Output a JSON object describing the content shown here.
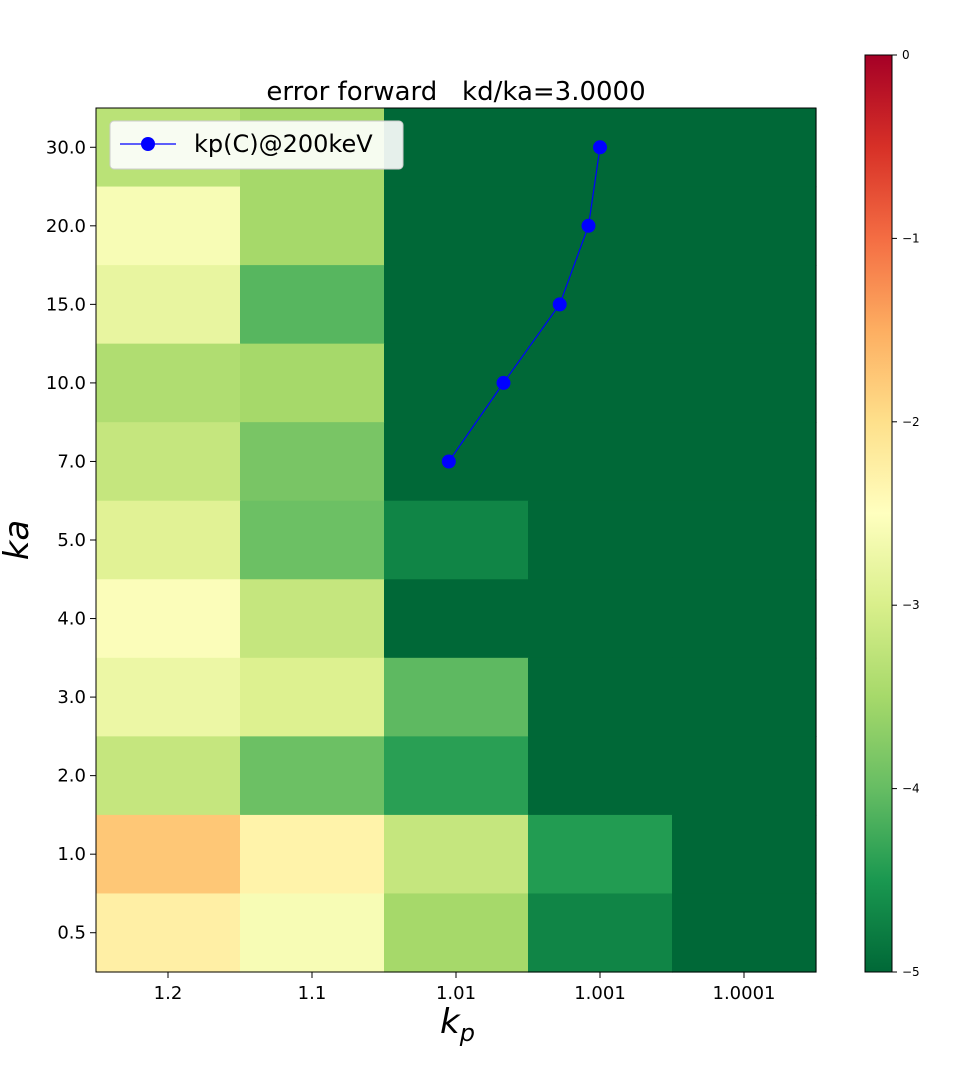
{
  "chart_data": {
    "type": "heatmap",
    "title": "error forward   kd/ka=3.0000",
    "xlabel": "k",
    "xlabel_subscript": "p",
    "ylabel": "ka",
    "x_categories": [
      "1.2",
      "1.1",
      "1.01",
      "1.001",
      "1.0001"
    ],
    "y_categories": [
      "30.0",
      "20.0",
      "15.0",
      "10.0",
      "7.0",
      "5.0",
      "4.0",
      "3.0",
      "2.0",
      "1.0",
      "0.5"
    ],
    "values": [
      [
        -3.3,
        -3.5,
        -5.0,
        -5.0,
        -5.0
      ],
      [
        -2.6,
        -3.5,
        -5.0,
        -5.0,
        -5.0
      ],
      [
        -2.8,
        -4.1,
        -5.0,
        -5.0,
        -5.0
      ],
      [
        -3.4,
        -3.5,
        -5.0,
        -5.0,
        -5.0
      ],
      [
        -3.2,
        -3.85,
        -5.0,
        -5.0,
        -5.0
      ],
      [
        -2.9,
        -3.95,
        -4.7,
        -5.0,
        -5.0
      ],
      [
        -2.55,
        -3.2,
        -5.0,
        -5.0,
        -5.0
      ],
      [
        -2.75,
        -2.95,
        -4.05,
        -5.0,
        -5.0
      ],
      [
        -3.2,
        -3.95,
        -4.4,
        -5.0,
        -5.0
      ],
      [
        -1.75,
        -2.3,
        -3.2,
        -4.45,
        -5.0
      ],
      [
        -2.25,
        -2.6,
        -3.5,
        -4.7,
        -5.0
      ]
    ],
    "colorbar": {
      "colormap": "RdYlGn_r",
      "vmin": -5,
      "vmax": 0,
      "ticks": [
        "0",
        "−1",
        "−2",
        "−3",
        "−4",
        "−5"
      ]
    },
    "series": [
      {
        "name": "kp(C)@200keV",
        "color": "#0000ff",
        "marker": "circle",
        "points": [
          {
            "x": 2.45,
            "y": "7.0"
          },
          {
            "x": 2.83,
            "y": "10.0"
          },
          {
            "x": 3.22,
            "y": "15.0"
          },
          {
            "x": 3.42,
            "y": "20.0"
          },
          {
            "x": 3.5,
            "y": "30.0"
          }
        ]
      }
    ],
    "legend_position": "top-left",
    "grid": false
  }
}
